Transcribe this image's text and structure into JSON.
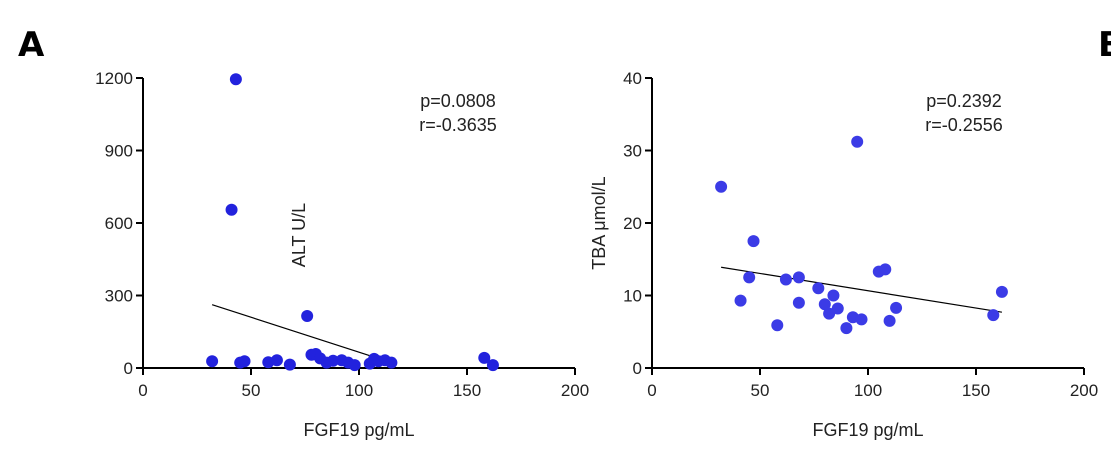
{
  "chart_data": [
    {
      "type": "scatter",
      "panel_label": "A",
      "xlabel": "FGF19 pg/mL",
      "ylabel": "ALT U/L",
      "xlim": [
        0,
        200
      ],
      "ylim": [
        0,
        1200
      ],
      "xticks": [
        0,
        50,
        100,
        150,
        200
      ],
      "yticks": [
        0,
        300,
        600,
        900,
        1200
      ],
      "annotations": [
        "p=0.0808",
        "r=-0.3635"
      ],
      "point_color": "#2222dd",
      "x": [
        32,
        41,
        43,
        45,
        47,
        58,
        62,
        68,
        76,
        78,
        80,
        82,
        85,
        88,
        92,
        95,
        98,
        105,
        107,
        109,
        112,
        115,
        158,
        162
      ],
      "y": [
        28,
        655,
        1195,
        22,
        28,
        24,
        32,
        14,
        215,
        55,
        58,
        40,
        22,
        30,
        32,
        22,
        12,
        18,
        38,
        28,
        32,
        22,
        42,
        12
      ],
      "fit_line": {
        "x": [
          32,
          115
        ],
        "y": [
          262,
          22
        ]
      }
    },
    {
      "type": "scatter",
      "panel_label": "B",
      "xlabel": "FGF19 pg/mL",
      "ylabel": "TBA μmol/L",
      "xlim": [
        0,
        200
      ],
      "ylim": [
        0,
        40
      ],
      "xticks": [
        0,
        50,
        100,
        150,
        200
      ],
      "yticks": [
        0,
        10,
        20,
        30,
        40
      ],
      "annotations": [
        "p=0.2392",
        "r=-0.2556"
      ],
      "point_color": "#3b3be6",
      "x": [
        32,
        41,
        45,
        47,
        58,
        62,
        68,
        68,
        77,
        80,
        82,
        84,
        86,
        90,
        93,
        95,
        97,
        105,
        108,
        110,
        113,
        158,
        162
      ],
      "y": [
        25,
        9.3,
        12.5,
        17.5,
        5.9,
        12.2,
        12.5,
        9.0,
        11.0,
        8.8,
        7.5,
        10.0,
        8.2,
        5.5,
        7.0,
        31.2,
        6.7,
        13.3,
        13.6,
        6.5,
        8.3,
        7.3,
        10.5
      ],
      "fit_line": {
        "x": [
          32,
          162
        ],
        "y": [
          13.9,
          7.7
        ]
      }
    }
  ]
}
